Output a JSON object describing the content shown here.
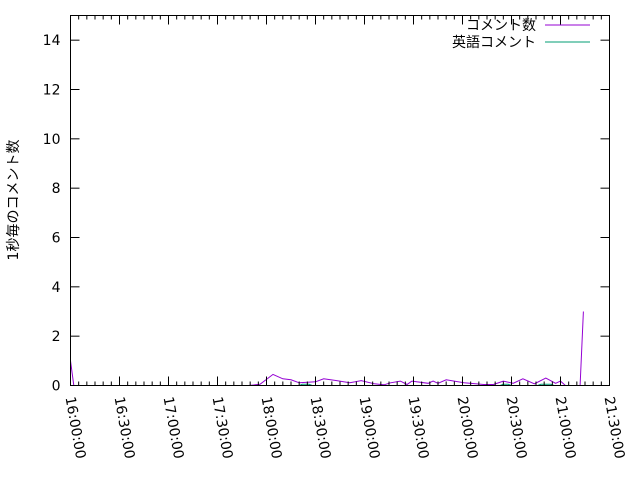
{
  "chart_data": {
    "type": "line",
    "title": "",
    "xlabel": "",
    "ylabel": "1秒毎のコメント数",
    "xlim": [
      "16:00:00",
      "21:30:00"
    ],
    "ylim": [
      0,
      15
    ],
    "x_ticks": [
      "16:00:00",
      "16:30:00",
      "17:00:00",
      "17:30:00",
      "18:00:00",
      "18:30:00",
      "19:00:00",
      "19:30:00",
      "20:00:00",
      "20:30:00",
      "21:00:00",
      "21:30:00"
    ],
    "y_ticks": [
      "0",
      "2",
      "4",
      "6",
      "8",
      "10",
      "12",
      "14"
    ],
    "grid": false,
    "legend_position": "top-right",
    "series": [
      {
        "name": "コメント数",
        "color": "#9400d3",
        "points": [
          [
            "16:00:00",
            1
          ],
          [
            "16:02:00",
            0
          ],
          [
            "17:49:00",
            0
          ],
          [
            "17:56:00",
            0.05
          ],
          [
            "18:04:00",
            0.45
          ],
          [
            "18:10:00",
            0.27
          ],
          [
            "18:15:00",
            0.23
          ],
          [
            "18:20:00",
            0.11
          ],
          [
            "18:30:00",
            0.15
          ],
          [
            "18:35:00",
            0.27
          ],
          [
            "18:43:00",
            0.2
          ],
          [
            "18:51:00",
            0.11
          ],
          [
            "18:58:00",
            0.2
          ],
          [
            "19:06:00",
            0.07
          ],
          [
            "19:12:00",
            0.03
          ],
          [
            "19:16:00",
            0.11
          ],
          [
            "19:22:00",
            0.18
          ],
          [
            "19:26:00",
            0.04
          ],
          [
            "19:29:00",
            0.18
          ],
          [
            "19:39:00",
            0.09
          ],
          [
            "19:42:00",
            0.18
          ],
          [
            "19:45:00",
            0.09
          ],
          [
            "19:50:00",
            0.23
          ],
          [
            "20:01:00",
            0.11
          ],
          [
            "20:13:00",
            0.04
          ],
          [
            "20:19:00",
            0.04
          ],
          [
            "20:25:00",
            0.18
          ],
          [
            "20:31:00",
            0.09
          ],
          [
            "20:37:00",
            0.27
          ],
          [
            "20:44:00",
            0.07
          ],
          [
            "20:51:00",
            0.3
          ],
          [
            "20:57:00",
            0.09
          ],
          [
            "21:00:00",
            0.18
          ],
          [
            "21:03:00",
            0
          ],
          [
            "21:12:00",
            0
          ],
          [
            "21:14:00",
            3
          ]
        ]
      },
      {
        "name": "英語コメント",
        "color": "#009e73",
        "points": [
          [
            "16:00:00",
            0
          ],
          [
            "18:20:00",
            0
          ],
          [
            "18:22:00",
            0.05
          ],
          [
            "18:26:00",
            0.05
          ],
          [
            "18:28:00",
            0
          ],
          [
            "20:23:00",
            0
          ],
          [
            "20:25:00",
            0.05
          ],
          [
            "20:28:00",
            0.05
          ],
          [
            "20:30:00",
            0
          ],
          [
            "20:46:00",
            0
          ],
          [
            "20:48:00",
            0.05
          ],
          [
            "20:54:00",
            0.05
          ],
          [
            "20:56:00",
            0
          ],
          [
            "21:14:00",
            0
          ]
        ]
      }
    ]
  }
}
